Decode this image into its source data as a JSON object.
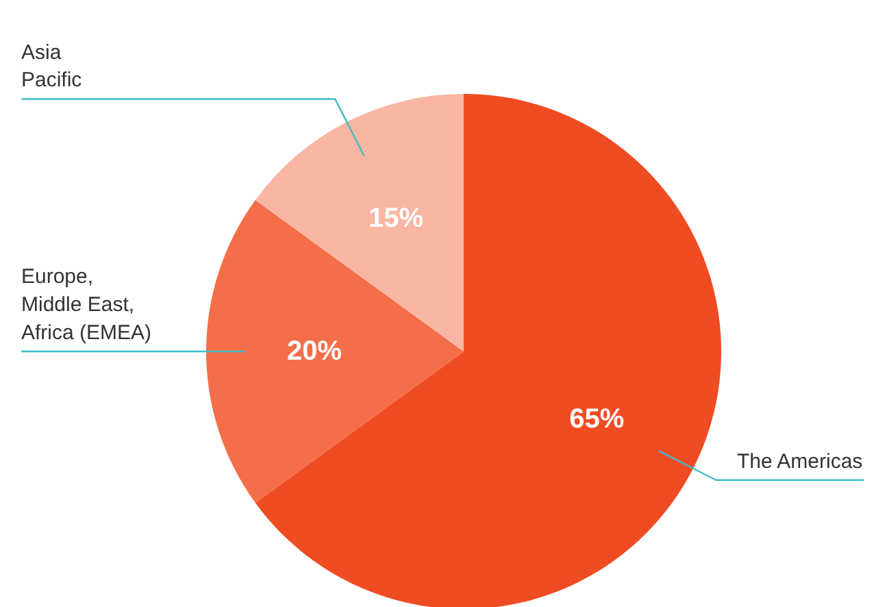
{
  "chart_data": {
    "type": "pie",
    "categories": [
      "The Americas",
      "Europe,\nMiddle East,\nAfrica (EMEA)",
      "Asia\nPacific"
    ],
    "values": [
      65,
      20,
      15
    ],
    "colors": [
      "#f04c24",
      "#f46e4a",
      "#f9b6a2"
    ],
    "value_labels": [
      "65%",
      "20%",
      "15%"
    ]
  }
}
